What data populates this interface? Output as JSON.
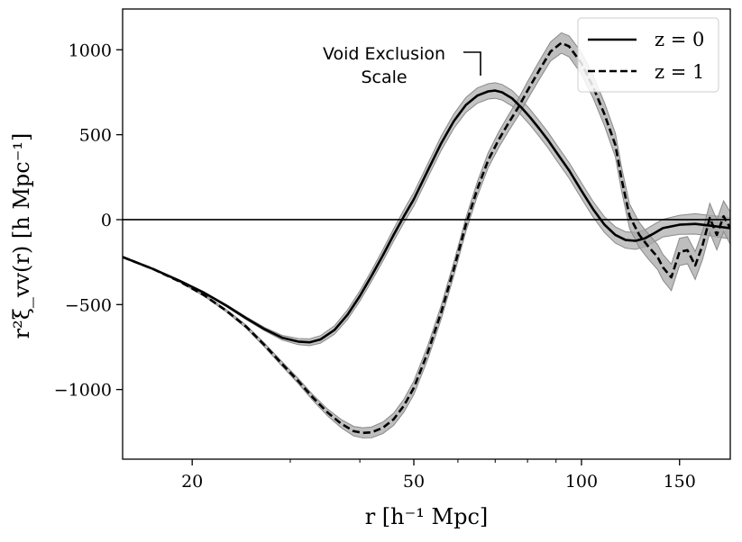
{
  "chart_data": {
    "type": "line",
    "title": "",
    "xlabel": "r [h⁻¹ Mpc]",
    "ylabel": "r²ξ_vv(r) [h Mpc⁻¹]",
    "xscale": "log",
    "xlim": [
      15,
      185
    ],
    "ylim": [
      -1410,
      1240
    ],
    "xticks_major": [
      20,
      50,
      100,
      150
    ],
    "xticks_minor": [
      30,
      40,
      60,
      70,
      80,
      90
    ],
    "yticks": [
      -1000,
      -500,
      0,
      500,
      1000
    ],
    "ytick_labels": [
      "−1000",
      "−500",
      "0",
      "500",
      "1000"
    ],
    "grid": false,
    "legend_position": "top-right",
    "hline": 0,
    "series": [
      {
        "name": "z = 0",
        "style": "solid",
        "color": "#000000",
        "band_color": "#b0b0b0",
        "x": [
          15,
          17,
          19,
          21,
          23,
          25,
          27,
          29,
          31,
          32.5,
          34,
          36,
          38,
          40,
          42,
          44,
          46,
          48,
          50,
          53,
          56,
          59,
          62,
          65,
          68,
          70,
          72,
          75,
          78,
          81,
          84,
          87,
          90,
          95,
          100,
          105,
          110,
          115,
          120,
          125,
          130,
          135,
          140,
          150,
          160,
          170,
          180,
          185
        ],
        "y": [
          -220,
          -290,
          -360,
          -430,
          -505,
          -580,
          -645,
          -695,
          -718,
          -722,
          -705,
          -650,
          -560,
          -450,
          -330,
          -210,
          -90,
          20,
          120,
          290,
          450,
          580,
          675,
          730,
          755,
          760,
          750,
          715,
          660,
          600,
          535,
          470,
          400,
          290,
          170,
          60,
          -30,
          -90,
          -120,
          -125,
          -110,
          -80,
          -50,
          -30,
          -25,
          -35,
          -45,
          -50
        ],
        "band": [
          2,
          2,
          3,
          4,
          6,
          8,
          10,
          14,
          18,
          20,
          22,
          25,
          28,
          30,
          32,
          34,
          36,
          38,
          40,
          40,
          42,
          42,
          44,
          45,
          45,
          46,
          46,
          46,
          46,
          46,
          46,
          46,
          46,
          46,
          46,
          46,
          46,
          48,
          48,
          50,
          50,
          52,
          52,
          56,
          60,
          60,
          62,
          62
        ]
      },
      {
        "name": "z = 1",
        "style": "dashed",
        "color": "#000000",
        "band_color": "#a8a8a8",
        "x": [
          15,
          17,
          19,
          21,
          23,
          25,
          27,
          29,
          31,
          33,
          35,
          37,
          39,
          40.5,
          42,
          44,
          46,
          48,
          50,
          53,
          56,
          59,
          62,
          65,
          68,
          71,
          74,
          77,
          80,
          84,
          88,
          92,
          95,
          100,
          105,
          110,
          115,
          118,
          122,
          127,
          132,
          137,
          140,
          145,
          150,
          155,
          160,
          165,
          170,
          175,
          180,
          185
        ],
        "y": [
          -220,
          -290,
          -365,
          -445,
          -535,
          -630,
          -740,
          -850,
          -950,
          -1050,
          -1135,
          -1200,
          -1245,
          -1255,
          -1252,
          -1225,
          -1175,
          -1095,
          -990,
          -780,
          -545,
          -290,
          -30,
          180,
          350,
          470,
          570,
          660,
          760,
          880,
          990,
          1040,
          1020,
          920,
          780,
          620,
          440,
          240,
          20,
          -90,
          -160,
          -220,
          -280,
          -340,
          -190,
          -180,
          -270,
          -150,
          10,
          -90,
          20,
          -50
        ],
        "band": [
          2,
          2,
          3,
          5,
          7,
          9,
          11,
          13,
          15,
          17,
          20,
          24,
          28,
          30,
          32,
          34,
          36,
          38,
          40,
          40,
          40,
          40,
          40,
          42,
          44,
          46,
          48,
          50,
          52,
          54,
          56,
          60,
          62,
          64,
          66,
          68,
          70,
          70,
          72,
          74,
          74,
          74,
          76,
          78,
          80,
          80,
          82,
          84,
          86,
          88,
          90,
          95
        ]
      }
    ],
    "annotations": [
      {
        "text_lines": [
          "Void Exclusion",
          "Scale"
        ],
        "x": 70,
        "y": 760
      }
    ]
  }
}
